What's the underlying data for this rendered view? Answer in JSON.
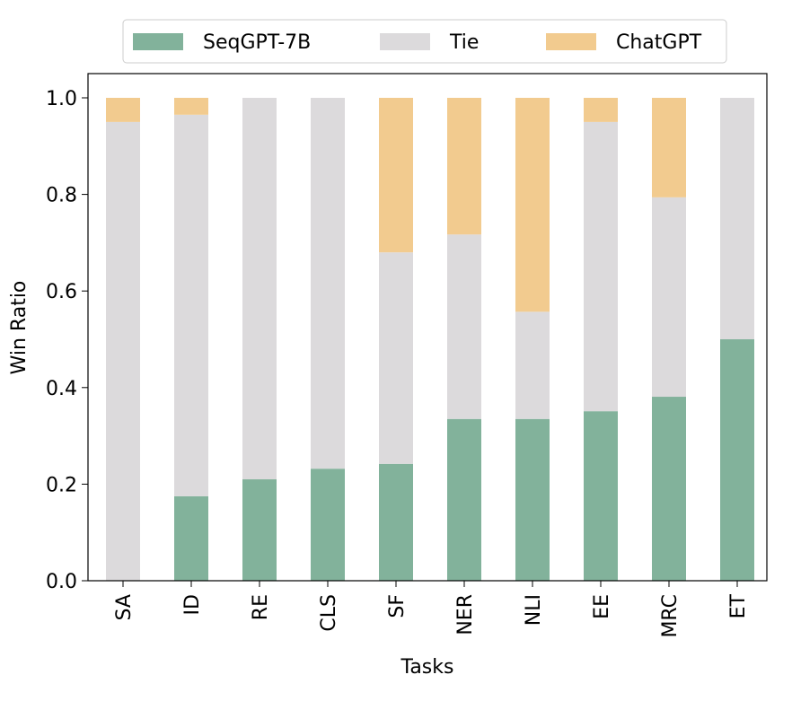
{
  "chart_data": {
    "type": "bar",
    "stacked": true,
    "xlabel": "Tasks",
    "ylabel": "Win Ratio",
    "ylim": [
      0,
      1.0
    ],
    "yticks": [
      "0.0",
      "0.2",
      "0.4",
      "0.6",
      "0.8",
      "1.0"
    ],
    "grid": false,
    "legend_position": "top-center",
    "categories": [
      "SA",
      "ID",
      "RE",
      "CLS",
      "SF",
      "NER",
      "NLI",
      "EE",
      "MRC",
      "ET"
    ],
    "series": [
      {
        "name": "SeqGPT-7B",
        "color": "#82b29b",
        "values": [
          0.0,
          0.175,
          0.21,
          0.232,
          0.242,
          0.335,
          0.335,
          0.351,
          0.381,
          0.5
        ]
      },
      {
        "name": "Tie",
        "color": "#dcdadc",
        "values": [
          0.95,
          0.79,
          0.79,
          0.768,
          0.438,
          0.382,
          0.222,
          0.599,
          0.413,
          0.5
        ]
      },
      {
        "name": "ChatGPT",
        "color": "#f2cb8f",
        "values": [
          0.05,
          0.035,
          0.0,
          0.0,
          0.32,
          0.283,
          0.443,
          0.05,
          0.206,
          0.0
        ]
      }
    ]
  }
}
